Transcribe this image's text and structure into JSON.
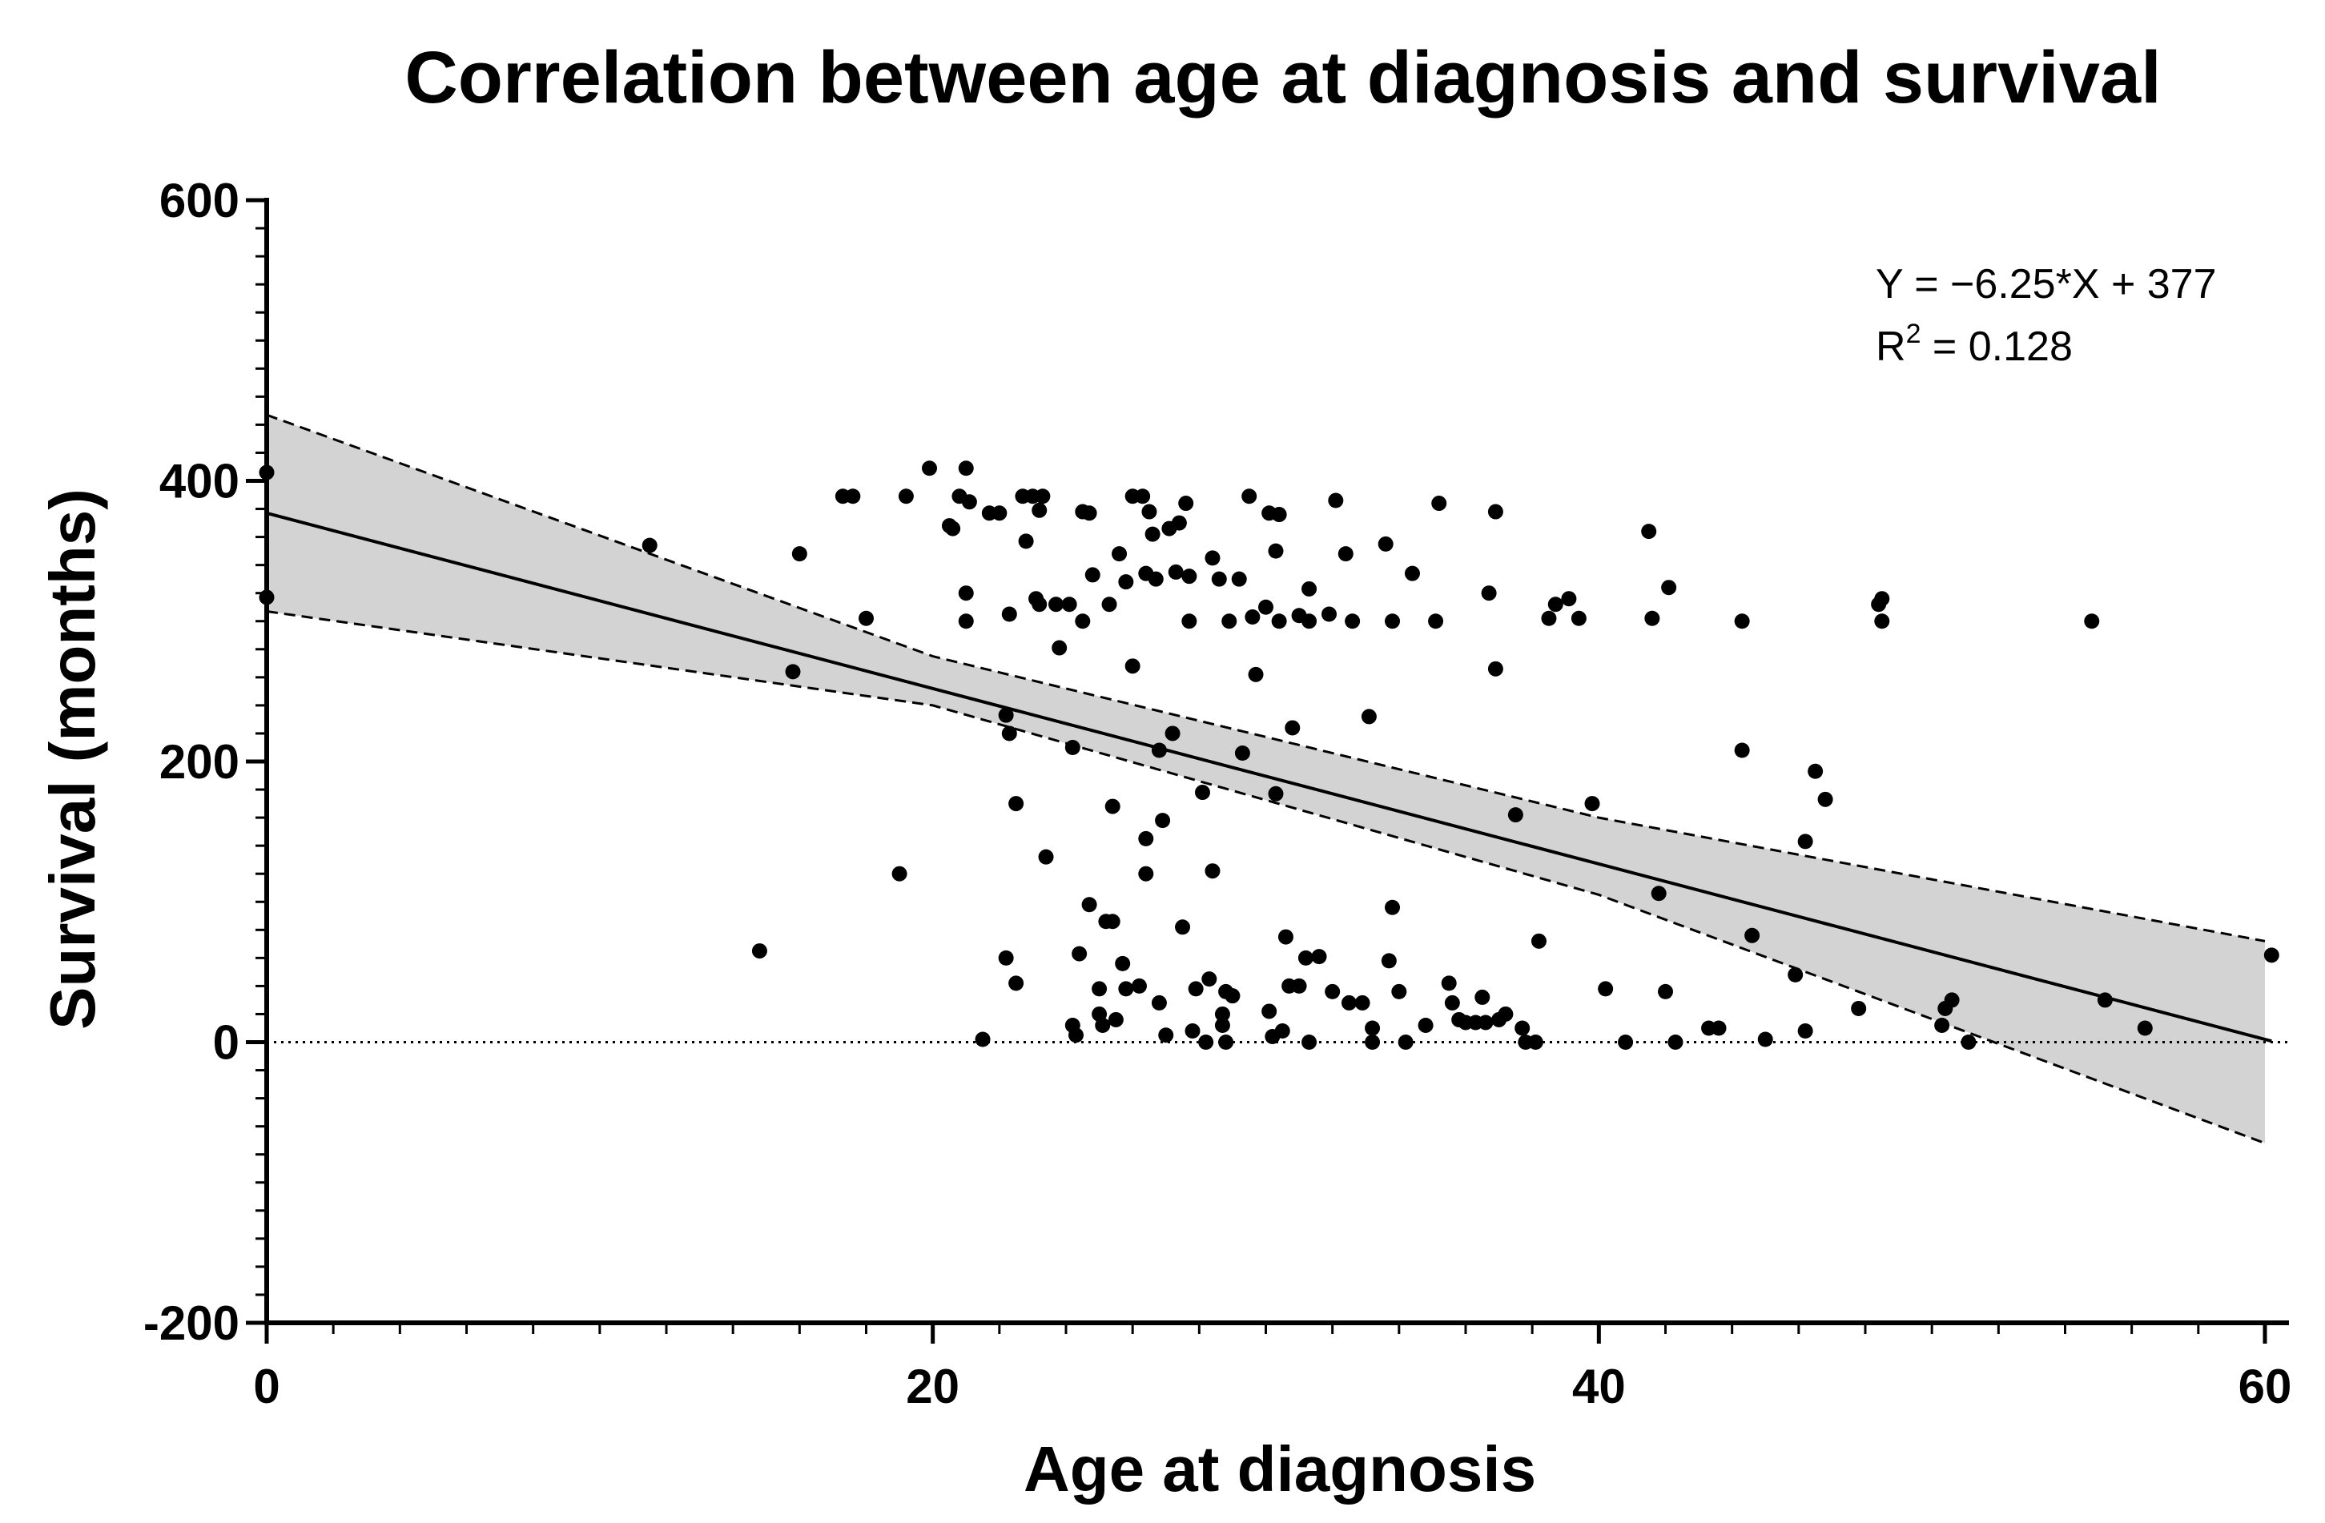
{
  "chart_data": {
    "type": "scatter",
    "title": "Correlation between age at diagnosis and survival",
    "xlabel": "Age at diagnosis",
    "ylabel": "Survival (months)",
    "xlim": [
      0,
      61
    ],
    "ylim": [
      -200,
      600
    ],
    "x_ticks": [
      0,
      20,
      40,
      60
    ],
    "x_tick_labels": [
      "0",
      "20",
      "40",
      "60"
    ],
    "y_ticks": [
      -200,
      0,
      200,
      400,
      600
    ],
    "y_tick_labels": [
      "-200",
      "0",
      "200",
      "400",
      "600"
    ],
    "regression": {
      "equation_text": "Y = −6.25*X + 377",
      "r2_prefix": "R",
      "r2_sup": "2",
      "r2_value_text": " = 0.128",
      "slope": -6.25,
      "intercept": 377,
      "x_range": [
        0,
        60.2
      ],
      "ci_upper": [
        [
          0,
          447
        ],
        [
          20,
          275
        ],
        [
          40,
          160
        ],
        [
          60,
          72
        ]
      ],
      "ci_lower": [
        [
          0,
          307
        ],
        [
          20,
          240
        ],
        [
          40,
          105
        ],
        [
          60,
          -72
        ]
      ]
    },
    "reference_line_y": 0,
    "points": [
      [
        0,
        406
      ],
      [
        0,
        317
      ],
      [
        11.5,
        354
      ],
      [
        14.8,
        65
      ],
      [
        15.8,
        264
      ],
      [
        16,
        348
      ],
      [
        17.3,
        389
      ],
      [
        17.6,
        389
      ],
      [
        18,
        302
      ],
      [
        19,
        120
      ],
      [
        19.2,
        389
      ],
      [
        19.9,
        409
      ],
      [
        20.5,
        368
      ],
      [
        20.6,
        366
      ],
      [
        20.8,
        389
      ],
      [
        21,
        409
      ],
      [
        21,
        320
      ],
      [
        21,
        300
      ],
      [
        21.1,
        385
      ],
      [
        21.5,
        2
      ],
      [
        21.7,
        377
      ],
      [
        22,
        377
      ],
      [
        22.3,
        305
      ],
      [
        22.2,
        60
      ],
      [
        22.2,
        233
      ],
      [
        22.3,
        220
      ],
      [
        22.5,
        170
      ],
      [
        22.5,
        42
      ],
      [
        22.7,
        389
      ],
      [
        22.8,
        357
      ],
      [
        23,
        389
      ],
      [
        23.1,
        316
      ],
      [
        23.2,
        312
      ],
      [
        23.2,
        379
      ],
      [
        23.3,
        389
      ],
      [
        23.4,
        132
      ],
      [
        23.7,
        312
      ],
      [
        23.8,
        281
      ],
      [
        24.1,
        312
      ],
      [
        24.2,
        210
      ],
      [
        24.2,
        12
      ],
      [
        24.3,
        5
      ],
      [
        24.4,
        63
      ],
      [
        24.5,
        378
      ],
      [
        24.5,
        300
      ],
      [
        24.7,
        377
      ],
      [
        24.7,
        98
      ],
      [
        24.8,
        333
      ],
      [
        25,
        38
      ],
      [
        25,
        20
      ],
      [
        25.1,
        12
      ],
      [
        25.2,
        86
      ],
      [
        25.3,
        312
      ],
      [
        25.4,
        86
      ],
      [
        25.4,
        168
      ],
      [
        25.5,
        16
      ],
      [
        25.6,
        348
      ],
      [
        25.7,
        56
      ],
      [
        25.8,
        328
      ],
      [
        25.8,
        38
      ],
      [
        26,
        268
      ],
      [
        26,
        389
      ],
      [
        26.2,
        40
      ],
      [
        26.3,
        389
      ],
      [
        26.4,
        334
      ],
      [
        26.4,
        145
      ],
      [
        26.4,
        120
      ],
      [
        26.5,
        378
      ],
      [
        26.6,
        362
      ],
      [
        26.7,
        330
      ],
      [
        26.8,
        28
      ],
      [
        26.8,
        208
      ],
      [
        26.9,
        158
      ],
      [
        27,
        5
      ],
      [
        27.1,
        366
      ],
      [
        27.2,
        220
      ],
      [
        27.3,
        335
      ],
      [
        27.4,
        370
      ],
      [
        27.5,
        82
      ],
      [
        27.6,
        384
      ],
      [
        27.7,
        332
      ],
      [
        27.7,
        300
      ],
      [
        27.8,
        8
      ],
      [
        27.9,
        38
      ],
      [
        28.1,
        178
      ],
      [
        28.2,
        0
      ],
      [
        28.3,
        45
      ],
      [
        28.4,
        345
      ],
      [
        28.4,
        122
      ],
      [
        28.6,
        330
      ],
      [
        28.7,
        20
      ],
      [
        28.7,
        12
      ],
      [
        28.8,
        36
      ],
      [
        28.8,
        0
      ],
      [
        28.9,
        300
      ],
      [
        29,
        33
      ],
      [
        29.2,
        330
      ],
      [
        29.3,
        206
      ],
      [
        29.5,
        389
      ],
      [
        29.6,
        303
      ],
      [
        29.7,
        262
      ],
      [
        30,
        310
      ],
      [
        30.1,
        22
      ],
      [
        30.1,
        377
      ],
      [
        30.2,
        4
      ],
      [
        30.3,
        350
      ],
      [
        30.3,
        177
      ],
      [
        30.4,
        376
      ],
      [
        30.4,
        300
      ],
      [
        30.5,
        8
      ],
      [
        30.6,
        75
      ],
      [
        30.7,
        40
      ],
      [
        30.8,
        224
      ],
      [
        31,
        40
      ],
      [
        31,
        304
      ],
      [
        31.2,
        60
      ],
      [
        31.3,
        323
      ],
      [
        31.3,
        300
      ],
      [
        31.3,
        0
      ],
      [
        31.6,
        61
      ],
      [
        31.9,
        305
      ],
      [
        32,
        36
      ],
      [
        32.1,
        386
      ],
      [
        32.4,
        348
      ],
      [
        32.5,
        28
      ],
      [
        32.6,
        300
      ],
      [
        32.9,
        28
      ],
      [
        33.1,
        232
      ],
      [
        33.2,
        10
      ],
      [
        33.2,
        0
      ],
      [
        33.6,
        355
      ],
      [
        33.7,
        58
      ],
      [
        33.8,
        96
      ],
      [
        33.8,
        300
      ],
      [
        34,
        36
      ],
      [
        34.2,
        0
      ],
      [
        34.4,
        334
      ],
      [
        34.8,
        12
      ],
      [
        35.1,
        300
      ],
      [
        35.2,
        384
      ],
      [
        35.5,
        42
      ],
      [
        35.6,
        28
      ],
      [
        35.8,
        16
      ],
      [
        36,
        14
      ],
      [
        36.3,
        14
      ],
      [
        36.5,
        32
      ],
      [
        36.6,
        14
      ],
      [
        36.7,
        320
      ],
      [
        36.9,
        266
      ],
      [
        36.9,
        378
      ],
      [
        37,
        16
      ],
      [
        37.2,
        20
      ],
      [
        37.5,
        162
      ],
      [
        37.7,
        10
      ],
      [
        37.8,
        0
      ],
      [
        38.1,
        0
      ],
      [
        38.2,
        72
      ],
      [
        38.5,
        302
      ],
      [
        38.7,
        312
      ],
      [
        39.1,
        316
      ],
      [
        39.4,
        302
      ],
      [
        39.8,
        170
      ],
      [
        40.2,
        38
      ],
      [
        40.8,
        0
      ],
      [
        41.5,
        364
      ],
      [
        41.6,
        302
      ],
      [
        41.8,
        106
      ],
      [
        42,
        36
      ],
      [
        42.1,
        324
      ],
      [
        42.3,
        0
      ],
      [
        43.3,
        10
      ],
      [
        43.6,
        10
      ],
      [
        44.3,
        300
      ],
      [
        44.3,
        208
      ],
      [
        44.6,
        76
      ],
      [
        45,
        2
      ],
      [
        45.9,
        48
      ],
      [
        46.2,
        143
      ],
      [
        46.2,
        8
      ],
      [
        46.5,
        193
      ],
      [
        46.8,
        173
      ],
      [
        47.8,
        24
      ],
      [
        48.4,
        312
      ],
      [
        48.5,
        316
      ],
      [
        48.5,
        300
      ],
      [
        50.3,
        12
      ],
      [
        50.4,
        24
      ],
      [
        50.6,
        30
      ],
      [
        51.1,
        0
      ],
      [
        54.8,
        300
      ],
      [
        55.2,
        30
      ],
      [
        56.4,
        10
      ],
      [
        60.2,
        62
      ]
    ]
  }
}
